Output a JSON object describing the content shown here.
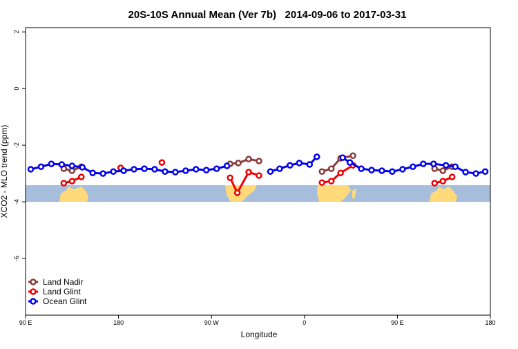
{
  "chart_data": {
    "type": "line",
    "title": "20S-10S Annual Mean (Ver 7b)   2014-09-06 to 2017-03-31",
    "x_label": "Longitude",
    "y_label": "XCO2 - MLO trend (ppm)",
    "xlim": [
      90,
      540
    ],
    "ylim": [
      -8,
      2.15
    ],
    "xticks": [
      {
        "value": 90,
        "label": "90 E"
      },
      180,
      {
        "value": 270,
        "label": "90 W"
      },
      {
        "value": 360,
        "label": "0"
      },
      {
        "value": 450,
        "label": "90 E"
      },
      {
        "value": 540,
        "label": "180"
      }
    ],
    "yticks": [
      2,
      0,
      -2,
      -4,
      -6
    ],
    "legend": "bottom-left",
    "series": [
      {
        "name": "Land Nadir",
        "color": "#8b3a3a",
        "x": [
          127,
          135,
          144,
          null,
          288,
          296,
          306,
          316,
          null,
          377,
          386,
          395,
          407,
          null,
          486,
          494,
          503
        ],
        "values": [
          -2.83,
          -2.9,
          -2.76,
          null,
          -2.66,
          -2.63,
          -2.49,
          -2.56,
          null,
          -2.93,
          -2.83,
          -2.46,
          -2.37,
          null,
          -2.83,
          -2.9,
          -2.76
        ]
      },
      {
        "name": "Land Glint",
        "color": "#ee0000",
        "x": [
          127,
          135,
          144,
          null,
          182,
          null,
          222,
          null,
          288,
          295,
          306,
          316,
          null,
          377,
          386,
          395,
          407,
          null,
          486,
          494,
          503
        ],
        "values": [
          -3.34,
          -3.27,
          -3.12,
          null,
          -2.8,
          null,
          -2.61,
          null,
          -3.15,
          -3.68,
          -2.95,
          -3.07,
          null,
          -3.32,
          -3.27,
          -2.98,
          -2.71,
          null,
          -3.34,
          -3.27,
          -3.12
        ]
      },
      {
        "name": "Ocean Glint",
        "color": "#0000ee",
        "x": [
          95,
          105,
          115,
          125,
          135,
          145,
          155,
          165,
          175,
          185,
          195,
          205,
          215,
          225,
          235,
          245,
          255,
          265,
          275,
          285,
          null,
          327,
          336,
          346,
          355,
          365,
          372,
          null,
          397,
          404,
          415,
          425,
          435,
          445,
          455,
          465,
          475,
          485,
          497,
          506,
          516,
          526,
          535
        ],
        "values": [
          -2.85,
          -2.76,
          -2.66,
          -2.68,
          -2.73,
          -2.78,
          -2.98,
          -3.0,
          -2.93,
          -2.9,
          -2.85,
          -2.83,
          -2.85,
          -2.93,
          -2.95,
          -2.9,
          -2.85,
          -2.88,
          -2.83,
          -2.73,
          null,
          -2.93,
          -2.83,
          -2.71,
          -2.63,
          -2.68,
          -2.41,
          null,
          -2.44,
          -2.61,
          -2.83,
          -2.88,
          -2.9,
          -2.93,
          -2.85,
          -2.76,
          -2.66,
          -2.66,
          -2.71,
          -2.76,
          -2.95,
          -3.0,
          -2.93
        ]
      }
    ]
  }
}
